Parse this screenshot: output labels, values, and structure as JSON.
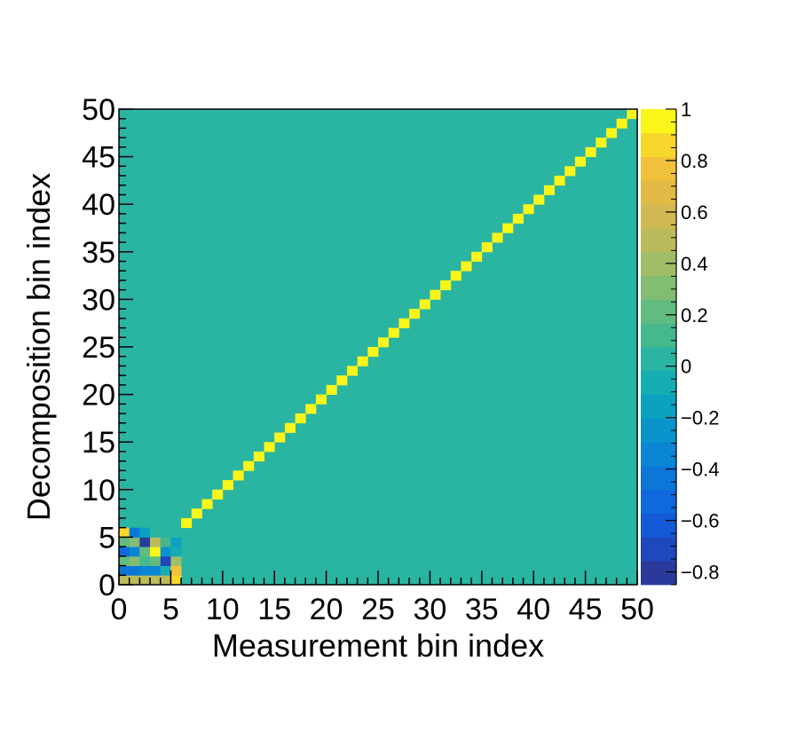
{
  "chart_data": {
    "type": "heatmap",
    "xlabel": "Measurement bin index",
    "ylabel": "Decomposition bin index",
    "x_range": [
      0,
      50
    ],
    "y_range": [
      0,
      50
    ],
    "n_bins_x": 50,
    "n_bins_y": 50,
    "x_ticks": [
      0,
      5,
      10,
      15,
      20,
      25,
      30,
      35,
      40,
      45,
      50
    ],
    "y_ticks": [
      0,
      5,
      10,
      15,
      20,
      25,
      30,
      35,
      40,
      45,
      50
    ],
    "x_tick_labels": [
      "0",
      "5",
      "10",
      "15",
      "20",
      "25",
      "30",
      "35",
      "40",
      "45",
      "50"
    ],
    "y_tick_labels": [
      "0",
      "5",
      "10",
      "15",
      "20",
      "25",
      "30",
      "35",
      "40",
      "45",
      "50"
    ],
    "default_value": 0,
    "diagonal": {
      "from_index": 6,
      "to_index": 49,
      "value": 1
    },
    "block": {
      "description_rows_bottom_to_top": [
        [
          0.5,
          0.5,
          0.45,
          0.45,
          0.5,
          0.9
        ],
        [
          -0.4,
          -0.4,
          -0.3,
          -0.3,
          -0.1,
          0.8
        ],
        [
          0.25,
          0.35,
          0.15,
          0.2,
          -0.75,
          0.4
        ],
        [
          -0.5,
          -0.3,
          0.2,
          0.95,
          -0.25,
          -0.05
        ],
        [
          0.2,
          0.35,
          -0.8,
          0.45,
          0.15,
          -0.15
        ],
        [
          0.9,
          -0.45,
          -0.15,
          0,
          0,
          0
        ]
      ]
    },
    "colorbar": {
      "min": -0.85,
      "max": 1.0,
      "n_steps": 20,
      "ticks": [
        1,
        0.8,
        0.6,
        0.4,
        0.2,
        0,
        -0.2,
        -0.4,
        -0.6,
        -0.8
      ],
      "tick_labels": [
        "1",
        "0.8",
        "0.6",
        "0.4",
        "0.2",
        "0",
        "−0.2",
        "−0.4",
        "−0.6",
        "−0.8"
      ],
      "palette": [
        "#2a3a9b",
        "#1f48bd",
        "#1459d6",
        "#0f68dc",
        "#0d77d8",
        "#0b86d2",
        "#0a94cb",
        "#0ba2c1",
        "#15adb2",
        "#29b5a1",
        "#45b88e",
        "#63bc7f",
        "#82bd72",
        "#a0bd67",
        "#bcbb5c",
        "#d2b852",
        "#e2bb46",
        "#f0c23c",
        "#f8d72d",
        "#fbf51a"
      ]
    }
  }
}
